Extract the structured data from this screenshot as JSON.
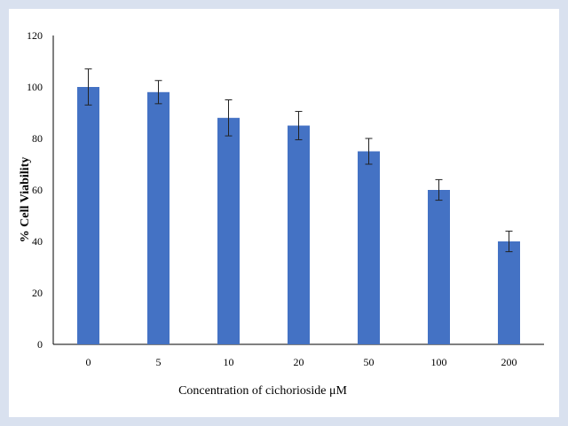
{
  "chart_data": {
    "type": "bar",
    "categories": [
      "0",
      "5",
      "10",
      "20",
      "50",
      "100",
      "200"
    ],
    "values": [
      100,
      98,
      88,
      85,
      75,
      60,
      40
    ],
    "error": [
      7,
      4.5,
      7,
      5.5,
      5,
      4,
      4
    ],
    "xlabel": "Concentration  of  cichorioside μM",
    "ylabel": "%  Cell  Viability",
    "ylim": [
      0,
      120
    ],
    "yticks": [
      0,
      20,
      40,
      60,
      80,
      100,
      120
    ],
    "bar_color": "#4472c4",
    "grid": false,
    "legend": "none"
  }
}
